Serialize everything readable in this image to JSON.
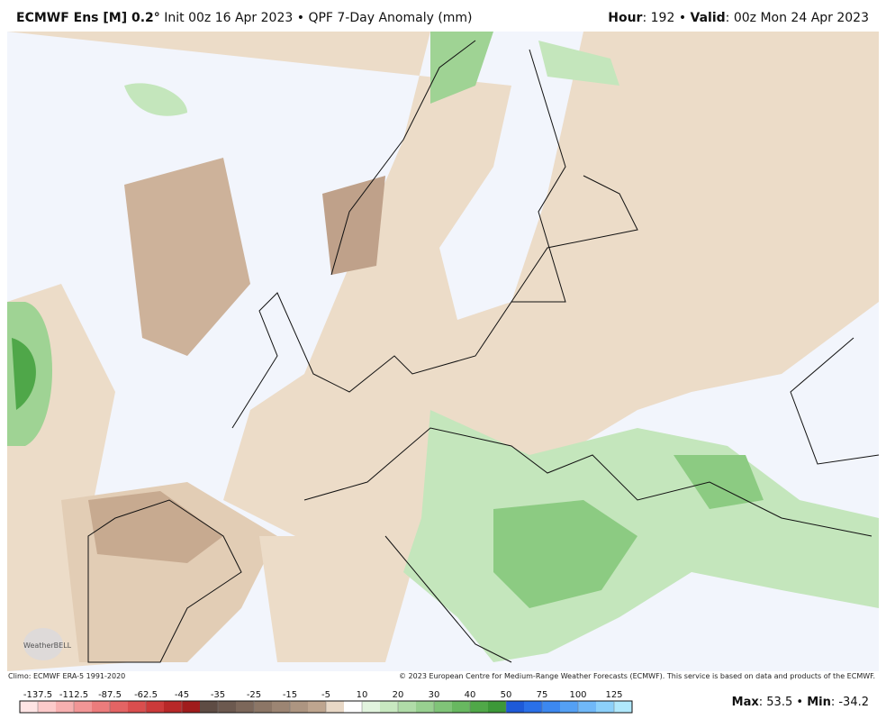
{
  "header": {
    "model": "ECMWF Ens [M] 0.2°",
    "init": "Init 00z 16 Apr 2023",
    "separator": "•",
    "product": "QPF 7-Day Anomaly (mm)",
    "hour_label": "Hour",
    "hour": "192",
    "valid_label": "Valid",
    "valid": "00z Mon 24 Apr 2023"
  },
  "footer": {
    "climo": "Climo: ECMWF ERA-5 1991-2020",
    "copyright": "© 2023 European Centre for Medium-Range Weather Forecasts (ECMWF). This service is based on data and products of the ECMWF.",
    "logo": "WeatherBELL"
  },
  "colorbar": {
    "ticks": [
      -137.5,
      -112.5,
      -87.5,
      -62.5,
      -45,
      -35,
      -25,
      -15,
      -5,
      10,
      20,
      30,
      40,
      50,
      75,
      100,
      125
    ],
    "colors": [
      "#ffe4e4",
      "#fccaca",
      "#f7b0b0",
      "#f29696",
      "#ec7c7c",
      "#e46464",
      "#da4e4e",
      "#cc3a3a",
      "#b82828",
      "#a01c1c",
      "#5e4c44",
      "#6c594f",
      "#7c675a",
      "#8c7666",
      "#9c8573",
      "#ad9581",
      "#bea58f",
      "#e8d8c6",
      "#ffffff",
      "#e2f4de",
      "#c8e8c0",
      "#b0dca8",
      "#98d090",
      "#80c478",
      "#68b860",
      "#50a848",
      "#3c9838",
      "#1e5ad8",
      "#2a70e8",
      "#3c88f0",
      "#54a0f4",
      "#70b8f8",
      "#8cd0fa",
      "#b0e8fc"
    ]
  },
  "stats": {
    "max_label": "Max",
    "max": 53.5,
    "min_label": "Min",
    "min": -34.2
  }
}
